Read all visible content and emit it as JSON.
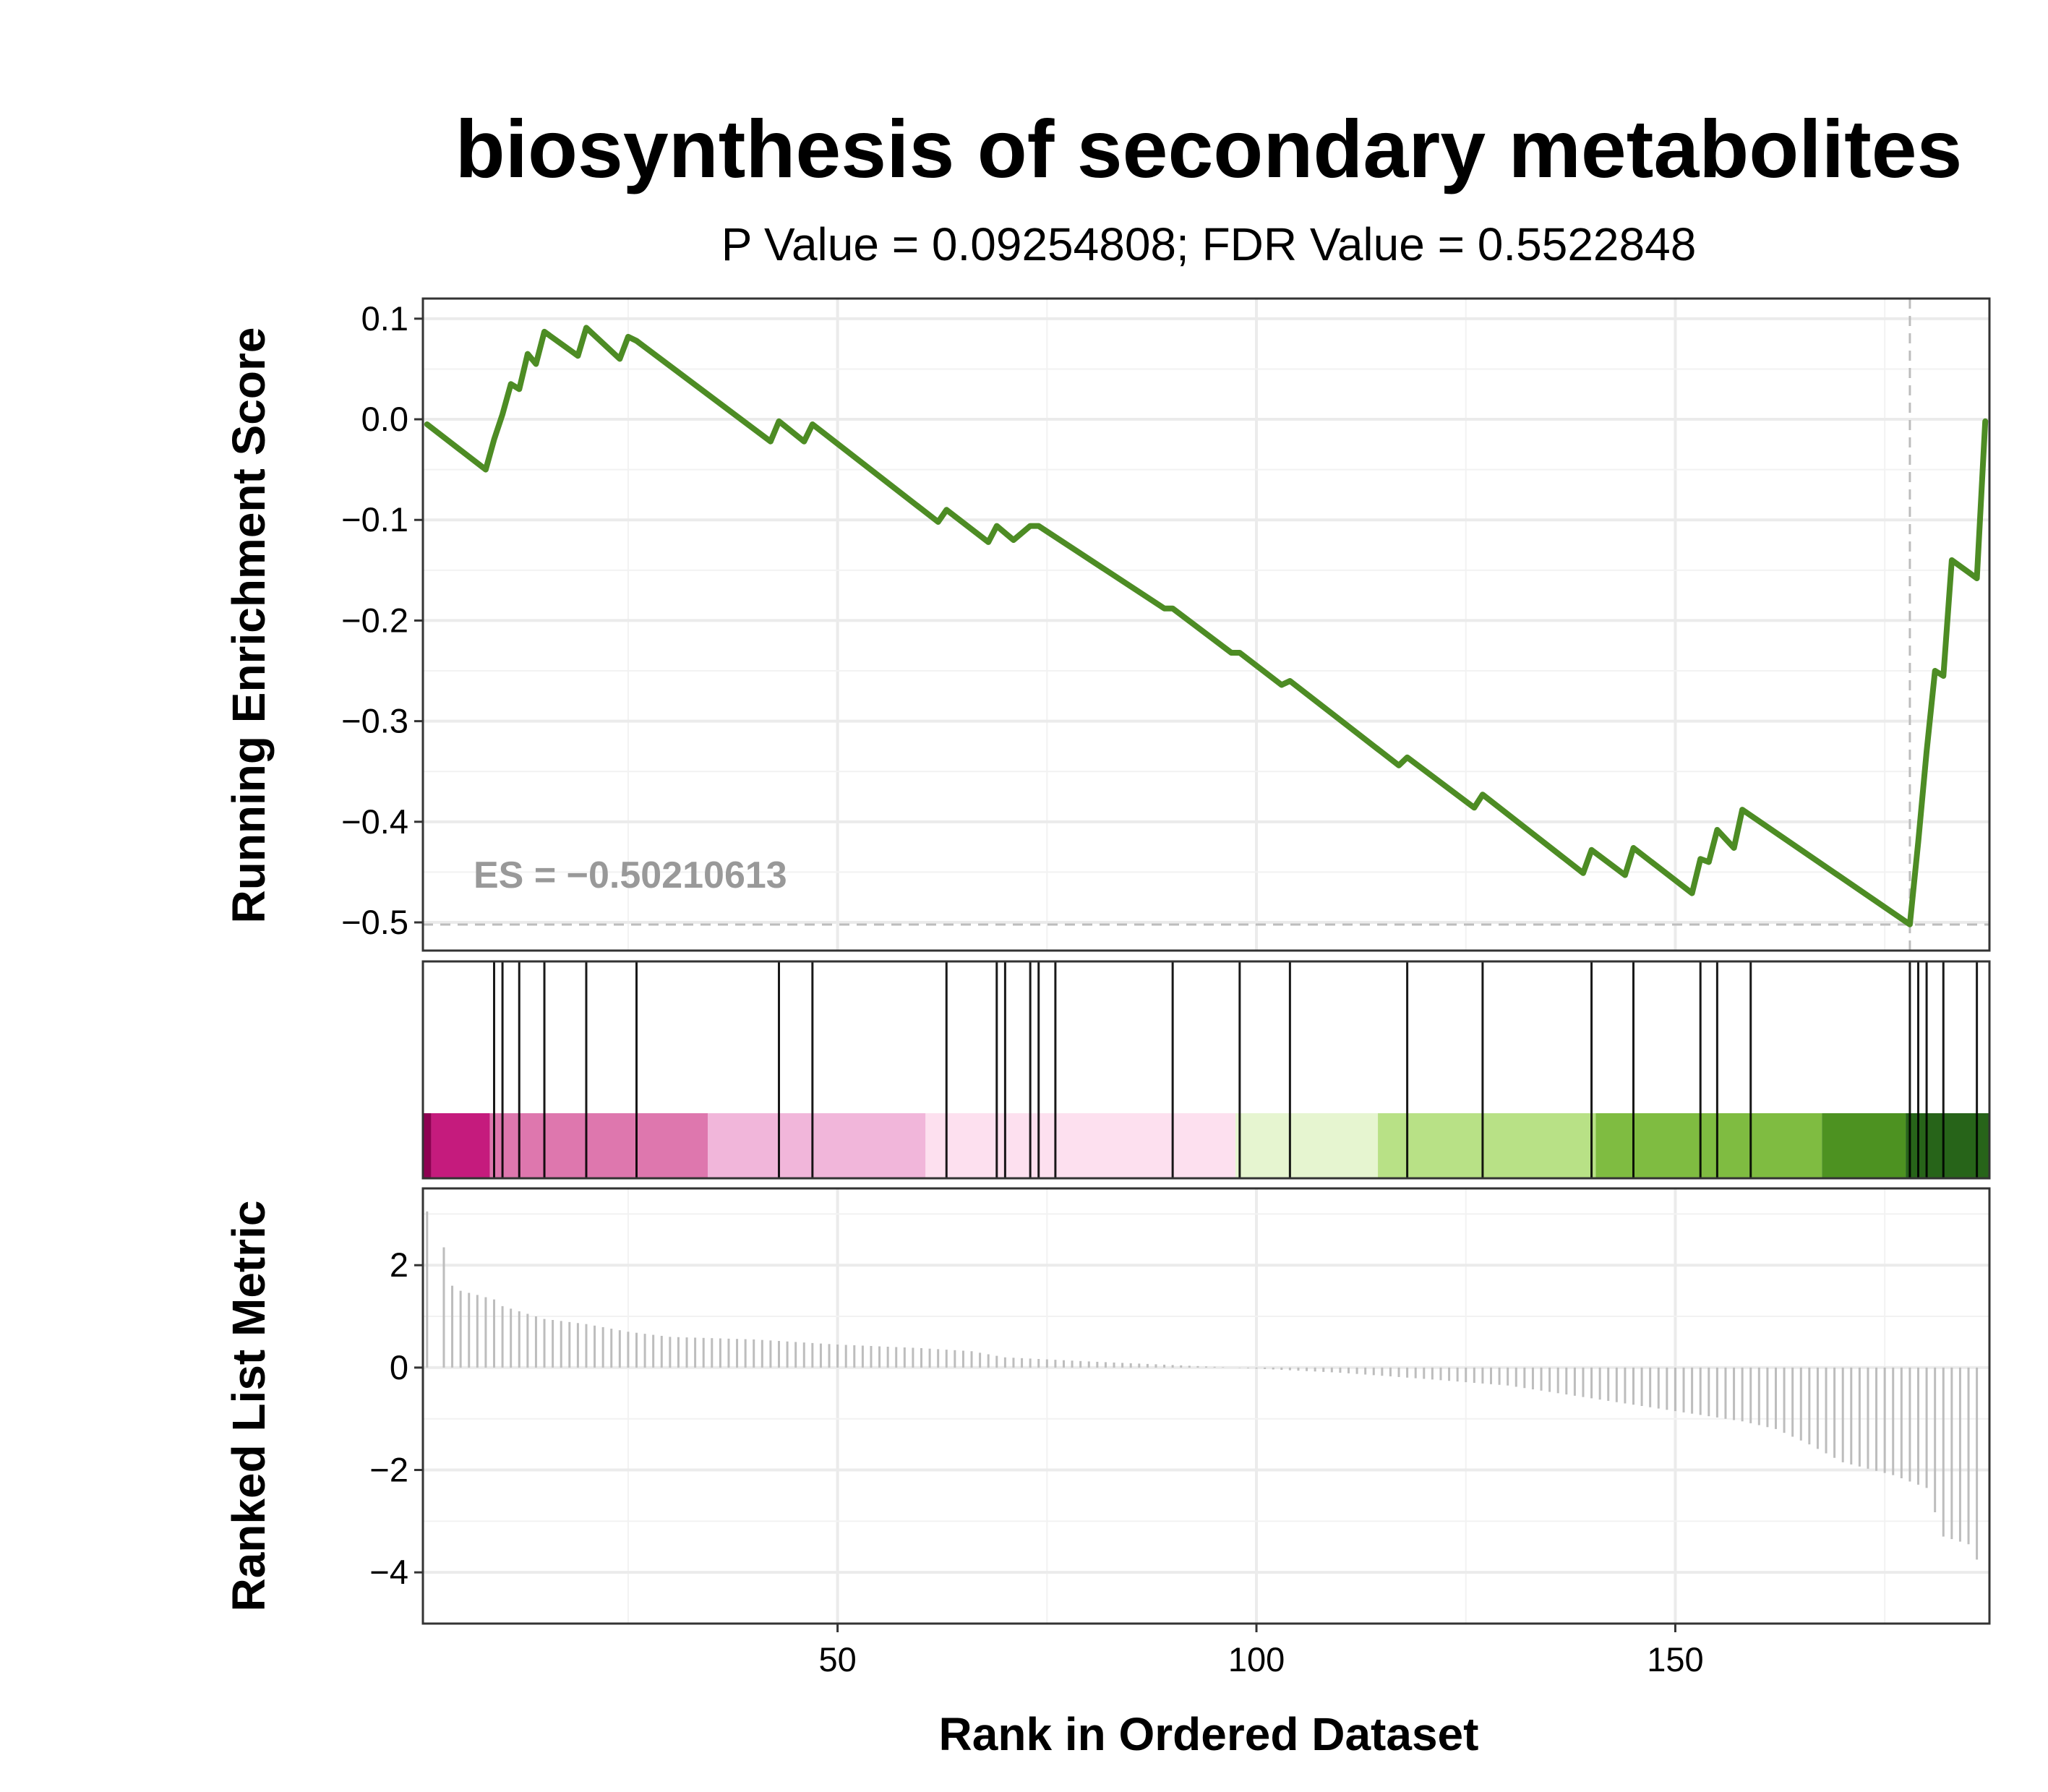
{
  "chart_data": {
    "type": "line",
    "title": "biosynthesis of secondary metabolites",
    "subtitle": "P Value = 0.09254808; FDR Value = 0.5522848",
    "es_label": "ES = −0.50210613",
    "xlabel": "Rank in Ordered Dataset",
    "xlim": [
      1,
      187
    ],
    "x_ticks": [
      {
        "v": 50,
        "label": "50"
      },
      {
        "v": 100,
        "label": "100"
      },
      {
        "v": 150,
        "label": "150"
      }
    ],
    "grid": true,
    "es_panel": {
      "ylabel": "Running Enrichment Score",
      "ylim": [
        -0.528,
        0.12
      ],
      "y_ticks": [
        {
          "v": 0.1,
          "label": "0.1"
        },
        {
          "v": 0.0,
          "label": "0.0"
        },
        {
          "v": -0.1,
          "label": "−0.1"
        },
        {
          "v": -0.2,
          "label": "−0.2"
        },
        {
          "v": -0.3,
          "label": "−0.3"
        },
        {
          "v": -0.4,
          "label": "−0.4"
        },
        {
          "v": -0.5,
          "label": "−0.5"
        }
      ],
      "line_color": "#4d8c24",
      "es_value": -0.50210613,
      "es_rank": 178,
      "x": [
        1,
        8,
        9,
        10,
        11,
        12,
        13,
        14,
        15,
        19,
        20,
        24,
        25,
        26,
        42,
        43,
        46,
        47,
        62,
        63,
        68,
        69,
        71,
        72,
        73,
        74,
        89,
        90,
        97,
        98,
        103,
        104,
        117,
        118,
        126,
        127,
        139,
        140,
        144,
        145,
        152,
        153,
        154,
        155,
        157,
        158,
        178,
        179,
        180,
        181,
        182,
        183,
        186,
        187
      ],
      "y": [
        -0.005,
        -0.05,
        -0.02,
        0.005,
        0.035,
        0.03,
        0.065,
        0.055,
        0.087,
        0.063,
        0.091,
        0.06,
        0.082,
        0.078,
        -0.022,
        -0.002,
        -0.022,
        -0.005,
        -0.102,
        -0.09,
        -0.122,
        -0.106,
        -0.12,
        -0.113,
        -0.106,
        -0.106,
        -0.188,
        -0.188,
        -0.232,
        -0.232,
        -0.264,
        -0.26,
        -0.344,
        -0.336,
        -0.386,
        -0.373,
        -0.451,
        -0.428,
        -0.453,
        -0.426,
        -0.471,
        -0.437,
        -0.44,
        -0.408,
        -0.426,
        -0.388,
        -0.502,
        -0.42,
        -0.33,
        -0.25,
        -0.255,
        -0.14,
        -0.158,
        -0.002
      ]
    },
    "hit_panel": {
      "hits": [
        9,
        10,
        12,
        15,
        20,
        26,
        43,
        47,
        63,
        69,
        70,
        73,
        74,
        76,
        90,
        98,
        104,
        118,
        127,
        140,
        145,
        153,
        155,
        159,
        178,
        179,
        180,
        182,
        186
      ],
      "color_bands": [
        {
          "from": 0.5,
          "to": 1.5,
          "color": "#8e0152"
        },
        {
          "from": 1.5,
          "to": 8.5,
          "color": "#c51b7d"
        },
        {
          "from": 8.5,
          "to": 34.5,
          "color": "#de77ae"
        },
        {
          "from": 34.5,
          "to": 60.5,
          "color": "#f1b6da"
        },
        {
          "from": 60.5,
          "to": 97.5,
          "color": "#fde0ef"
        },
        {
          "from": 97.5,
          "to": 114.5,
          "color": "#e6f5d0"
        },
        {
          "from": 114.5,
          "to": 140.5,
          "color": "#b8e186"
        },
        {
          "from": 140.5,
          "to": 167.5,
          "color": "#7fbc41"
        },
        {
          "from": 167.5,
          "to": 177.5,
          "color": "#4d9221"
        },
        {
          "from": 177.5,
          "to": 187.5,
          "color": "#276419"
        }
      ]
    },
    "rank_panel": {
      "ylabel": "Ranked List Metric",
      "ylim": [
        -5,
        3.5
      ],
      "y_ticks": [
        {
          "v": 2,
          "label": "2"
        },
        {
          "v": 0,
          "label": "0"
        },
        {
          "v": -2,
          "label": "−2"
        },
        {
          "v": -4,
          "label": "−4"
        }
      ],
      "bar_color": "#bdbdbd",
      "metric_anchors": [
        [
          1,
          3.05
        ],
        [
          2,
          0.0
        ],
        [
          3,
          2.35
        ],
        [
          4,
          1.6
        ],
        [
          5,
          1.5
        ],
        [
          7,
          1.42
        ],
        [
          9,
          1.33
        ],
        [
          10,
          1.2
        ],
        [
          12,
          1.1
        ],
        [
          15,
          0.95
        ],
        [
          20,
          0.85
        ],
        [
          25,
          0.7
        ],
        [
          30,
          0.6
        ],
        [
          40,
          0.55
        ],
        [
          50,
          0.45
        ],
        [
          60,
          0.38
        ],
        [
          66,
          0.32
        ],
        [
          70,
          0.2
        ],
        [
          80,
          0.12
        ],
        [
          90,
          0.05
        ],
        [
          100,
          -0.02
        ],
        [
          110,
          -0.1
        ],
        [
          120,
          -0.22
        ],
        [
          130,
          -0.35
        ],
        [
          140,
          -0.6
        ],
        [
          150,
          -0.85
        ],
        [
          158,
          -1.05
        ],
        [
          162,
          -1.2
        ],
        [
          166,
          -1.5
        ],
        [
          170,
          -1.85
        ],
        [
          176,
          -2.1
        ],
        [
          180,
          -2.35
        ],
        [
          182,
          -3.3
        ],
        [
          185,
          -3.45
        ],
        [
          186,
          -3.75
        ],
        [
          187,
          0.0
        ]
      ]
    }
  }
}
